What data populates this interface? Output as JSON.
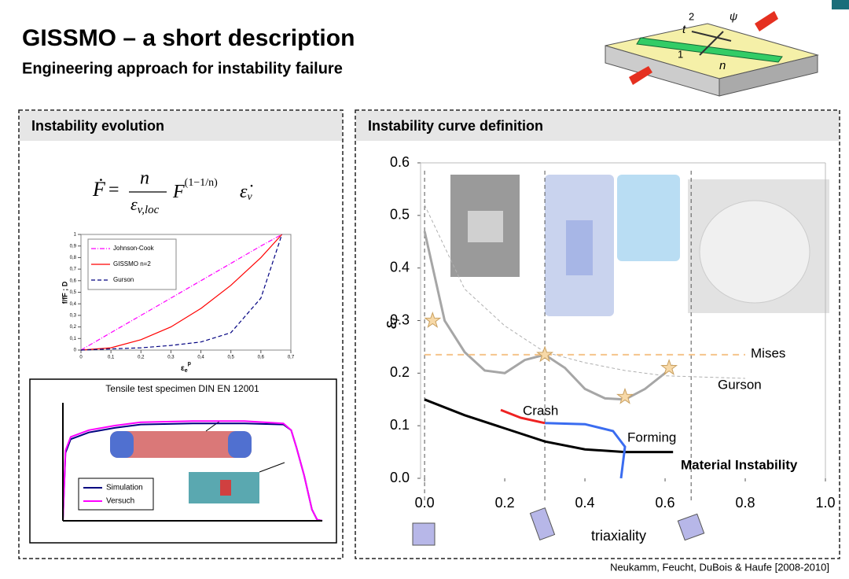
{
  "header": {
    "title": "GISSMO – a short description",
    "subtitle": "Engineering approach for instability failure"
  },
  "figure": {
    "labels": [
      "2",
      "ψ",
      "t",
      "1",
      "n"
    ]
  },
  "panels": [
    {
      "title": "Instability evolution"
    },
    {
      "title": "Instability curve definition"
    }
  ],
  "formula": {
    "lhs": "Ḟ",
    "equals": "=",
    "numerator": "n",
    "denominator": "ε",
    "denominator_sub": "v,loc",
    "base": "F",
    "exponent": "(1−1/n)",
    "rate": "ε̇",
    "rate_sub": "v"
  },
  "chart_data": [
    {
      "type": "line",
      "xlabel": "ε",
      "xlabel_sub": "e",
      "xlabel_sup": "p",
      "ylabel": "f/fF ; D",
      "xlim": [
        0,
        0.7
      ],
      "ylim": [
        0,
        1
      ],
      "xticks": [
        0,
        {
          "value": 0.1,
          "label": "0,1"
        },
        {
          "value": 0.2,
          "label": "0,2"
        },
        {
          "value": 0.3,
          "label": "0,3"
        },
        {
          "value": 0.4,
          "label": "0,4"
        },
        {
          "value": 0.5,
          "label": "0,5"
        },
        {
          "value": 0.6,
          "label": "0,6"
        },
        {
          "value": 0.7,
          "label": "0,7"
        }
      ],
      "yticks": [
        0,
        {
          "value": 0.1,
          "label": "0,1"
        },
        {
          "value": 0.2,
          "label": "0,2"
        },
        {
          "value": 0.3,
          "label": "0,3"
        },
        {
          "value": 0.4,
          "label": "0,4"
        },
        {
          "value": 0.5,
          "label": "0,5"
        },
        {
          "value": 0.6,
          "label": "0,6"
        },
        {
          "value": 0.7,
          "label": "0,7"
        },
        {
          "value": 0.8,
          "label": "0,8"
        },
        {
          "value": 0.9,
          "label": "0,9"
        },
        1
      ],
      "x": [
        0,
        0.1,
        0.2,
        0.3,
        0.4,
        0.5,
        0.6,
        0.67
      ],
      "series": [
        {
          "name": "Johnson-Cook",
          "color": "#ff00ff",
          "dash": "6 2 1 2",
          "values": [
            0,
            0.15,
            0.3,
            0.45,
            0.6,
            0.75,
            0.9,
            1
          ]
        },
        {
          "name": "GISSMO n=2",
          "color": "#ff0000",
          "values": [
            0,
            0.02,
            0.09,
            0.2,
            0.36,
            0.56,
            0.8,
            1
          ]
        },
        {
          "name": "Gurson",
          "color": "#000080",
          "dash": "5 3",
          "values": [
            0,
            0.01,
            0.02,
            0.04,
            0.07,
            0.15,
            0.45,
            1
          ]
        }
      ]
    },
    {
      "type": "line",
      "title": "Tensile test specimen DIN EN 12001",
      "xlim": [
        0,
        1
      ],
      "ylim": [
        0,
        1
      ],
      "x": [
        0,
        0.01,
        0.03,
        0.1,
        0.2,
        0.3,
        0.5,
        0.7,
        0.85,
        0.88,
        0.9,
        0.93,
        0.96,
        0.98,
        1
      ],
      "series": [
        {
          "name": "Simulation",
          "color": "#000080",
          "values": [
            0,
            0.6,
            0.72,
            0.78,
            0.82,
            0.85,
            0.86,
            0.86,
            0.85,
            0.8,
            0.65,
            0.4,
            0.1,
            0.01,
            0
          ]
        },
        {
          "name": "Versuch",
          "color": "#ff00ff",
          "values": [
            0,
            0.62,
            0.74,
            0.8,
            0.84,
            0.87,
            0.88,
            0.88,
            0.86,
            0.8,
            0.65,
            0.4,
            0.1,
            0.01,
            0
          ]
        }
      ]
    },
    {
      "type": "line",
      "xlabel": "triaxiality",
      "ylabel": "ε",
      "ylabel_sub": "f",
      "xlim": [
        -0.01,
        1
      ],
      "ylim": [
        0,
        0.6
      ],
      "xticks": [
        {
          "value": 0,
          "label": "0.0"
        },
        0.2,
        0.4,
        0.6,
        0.8,
        {
          "value": 1,
          "label": "1.0"
        }
      ],
      "yticks": [
        {
          "value": 0,
          "label": "0.0"
        },
        0.1,
        0.2,
        0.3,
        0.4,
        0.5,
        0.6
      ],
      "guides": [
        0,
        0.3,
        0.665
      ],
      "series": [
        {
          "color": "#a6a6a6",
          "width": 3,
          "x": [
            0,
            0.05,
            0.1,
            0.15,
            0.2,
            0.25,
            0.3,
            0.35,
            0.4,
            0.45,
            0.5,
            0.55,
            0.6,
            0.62
          ],
          "values": [
            0.47,
            0.3,
            0.24,
            0.205,
            0.2,
            0.225,
            0.235,
            0.21,
            0.17,
            0.152,
            0.15,
            0.17,
            0.2,
            0.215
          ]
        },
        {
          "name": "Gurson",
          "color": "#b0b0b0",
          "width": 1,
          "dash": "4 3",
          "x": [
            0,
            0.1,
            0.2,
            0.3,
            0.4,
            0.5,
            0.6,
            0.8
          ],
          "values": [
            0.52,
            0.36,
            0.29,
            0.24,
            0.22,
            0.205,
            0.195,
            0.19
          ]
        },
        {
          "name": "Mises",
          "color": "#f5c48a",
          "width": 2,
          "dash": "8 6",
          "x": [
            0,
            0.8
          ],
          "values": [
            0.235,
            0.235
          ]
        },
        {
          "name": "Material Instability",
          "color": "#000000",
          "width": 3,
          "x": [
            0,
            0.1,
            0.2,
            0.3,
            0.4,
            0.5,
            0.62
          ],
          "values": [
            0.15,
            0.12,
            0.095,
            0.07,
            0.055,
            0.05,
            0.05
          ]
        },
        {
          "name": "Forming",
          "color": "#3a6cf0",
          "width": 3,
          "x": [
            0.49,
            0.5,
            0.47,
            0.4,
            0.3
          ],
          "values": [
            0,
            0.06,
            0.09,
            0.103,
            0.105
          ]
        },
        {
          "name": "Crash",
          "color": "#ee2222",
          "width": 3,
          "x": [
            0.3,
            0.24,
            0.19
          ],
          "values": [
            0.105,
            0.115,
            0.13
          ]
        },
        {
          "color": "#f7d9a8",
          "line": false,
          "x": [
            0.02,
            0.3,
            0.5,
            0.61
          ],
          "values": [
            0.3,
            0.235,
            0.155,
            0.21
          ]
        }
      ]
    }
  ],
  "citation": "Neukamm, Feucht, DuBois & Haufe [2008-2010]"
}
